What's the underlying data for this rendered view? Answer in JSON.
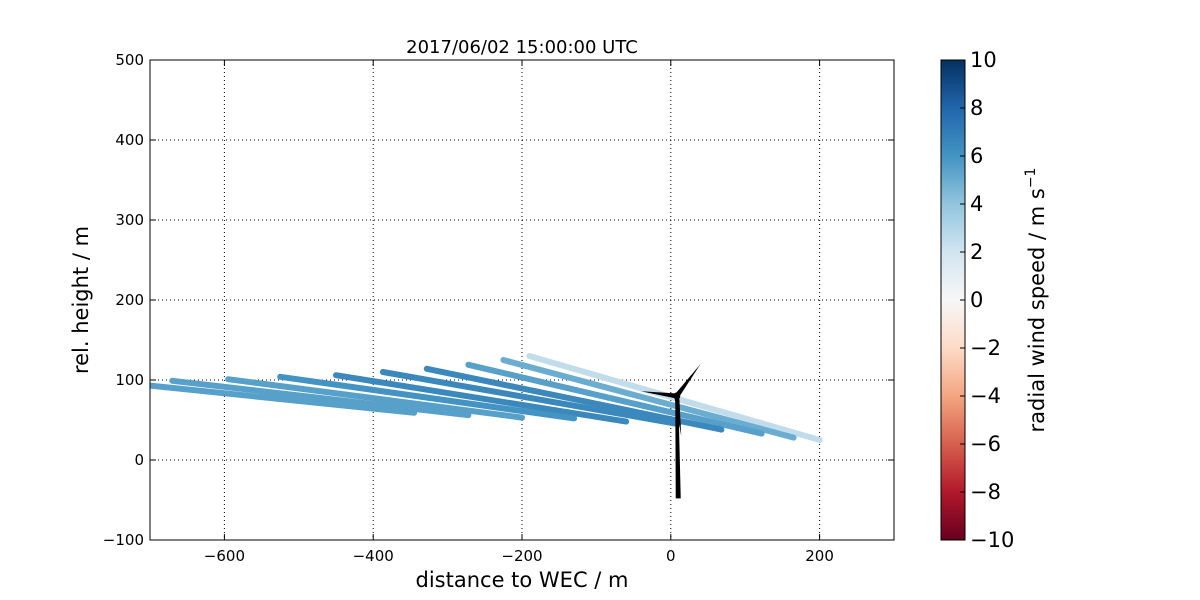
{
  "chart_data": {
    "type": "line",
    "title": "2017/06/02 15:00:00 UTC",
    "xlabel": "distance to WEC / m",
    "ylabel": "rel. height / m",
    "xlim": [
      -700,
      300
    ],
    "ylim": [
      -100,
      500
    ],
    "xticks": [
      "−600",
      "−400",
      "−200",
      "0",
      "200"
    ],
    "xtick_values": [
      -600,
      -400,
      -200,
      0,
      200
    ],
    "yticks": [
      "−100",
      "0",
      "100",
      "200",
      "300",
      "400",
      "500"
    ],
    "ytick_values": [
      -100,
      0,
      100,
      200,
      300,
      400,
      500
    ],
    "grid": true,
    "colormap": "RdBu",
    "series": [
      {
        "x": [
          -190,
          200
        ],
        "y": [
          130,
          25
        ],
        "value": 2.5
      },
      {
        "x": [
          -225,
          165
        ],
        "y": [
          125,
          28
        ],
        "value": 5.0
      },
      {
        "x": [
          -272,
          122
        ],
        "y": [
          119,
          33
        ],
        "value": 5.5
      },
      {
        "x": [
          -328,
          68
        ],
        "y": [
          114,
          38
        ],
        "value": 6.5
      },
      {
        "x": [
          -387,
          10
        ],
        "y": [
          110,
          45
        ],
        "value": 6.5
      },
      {
        "x": [
          -450,
          -60
        ],
        "y": [
          106,
          48
        ],
        "value": 6.5
      },
      {
        "x": [
          -525,
          -130
        ],
        "y": [
          104,
          52
        ],
        "value": 6.0
      },
      {
        "x": [
          -595,
          -200
        ],
        "y": [
          101,
          53
        ],
        "value": 5.5
      },
      {
        "x": [
          -670,
          -272
        ],
        "y": [
          99,
          56
        ],
        "value": 5.5
      },
      {
        "x": [
          -700,
          -345
        ],
        "y": [
          93,
          59
        ],
        "value": 5.5
      }
    ],
    "turbine": {
      "hub": [
        8,
        80
      ],
      "tower_base": [
        10,
        -48
      ],
      "blade_tips": [
        [
          40,
          120
        ],
        [
          -40,
          86
        ],
        [
          14,
          30
        ]
      ]
    },
    "colorbar": {
      "label": "radial wind speed / m s",
      "label_superscript": "−1",
      "range": [
        -10,
        10
      ],
      "ticks": [
        "−10",
        "−8",
        "−6",
        "−4",
        "−2",
        "0",
        "2",
        "4",
        "6",
        "8",
        "10"
      ],
      "tick_values": [
        -10,
        -8,
        -6,
        -4,
        -2,
        0,
        2,
        4,
        6,
        8,
        10
      ]
    }
  }
}
